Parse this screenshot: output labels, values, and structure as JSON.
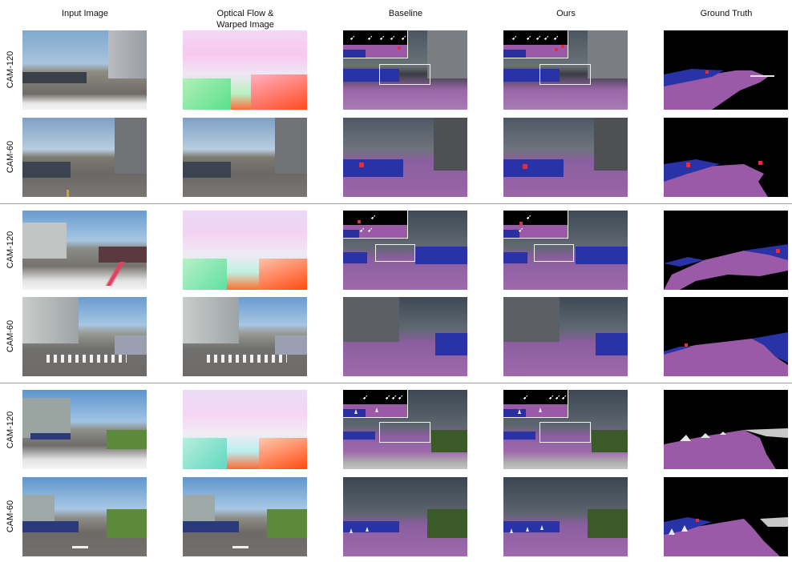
{
  "columns": [
    {
      "label": "Input Image"
    },
    {
      "label": "Optical Flow &\nWarped Image"
    },
    {
      "label": "Baseline"
    },
    {
      "label": "Ours"
    },
    {
      "label": "Ground Truth"
    }
  ],
  "rows": [
    {
      "label": "CAM-120"
    },
    {
      "label": "CAM-60"
    },
    {
      "label": "CAM-120"
    },
    {
      "label": "CAM-60"
    },
    {
      "label": "CAM-120"
    },
    {
      "label": "CAM-60"
    }
  ],
  "colors": {
    "road": "#9b5aa8",
    "vehicle": "#2a32a8",
    "pedestrian_marker": "#e0303e",
    "cone": "#e6e6e6",
    "background": "#000000"
  }
}
